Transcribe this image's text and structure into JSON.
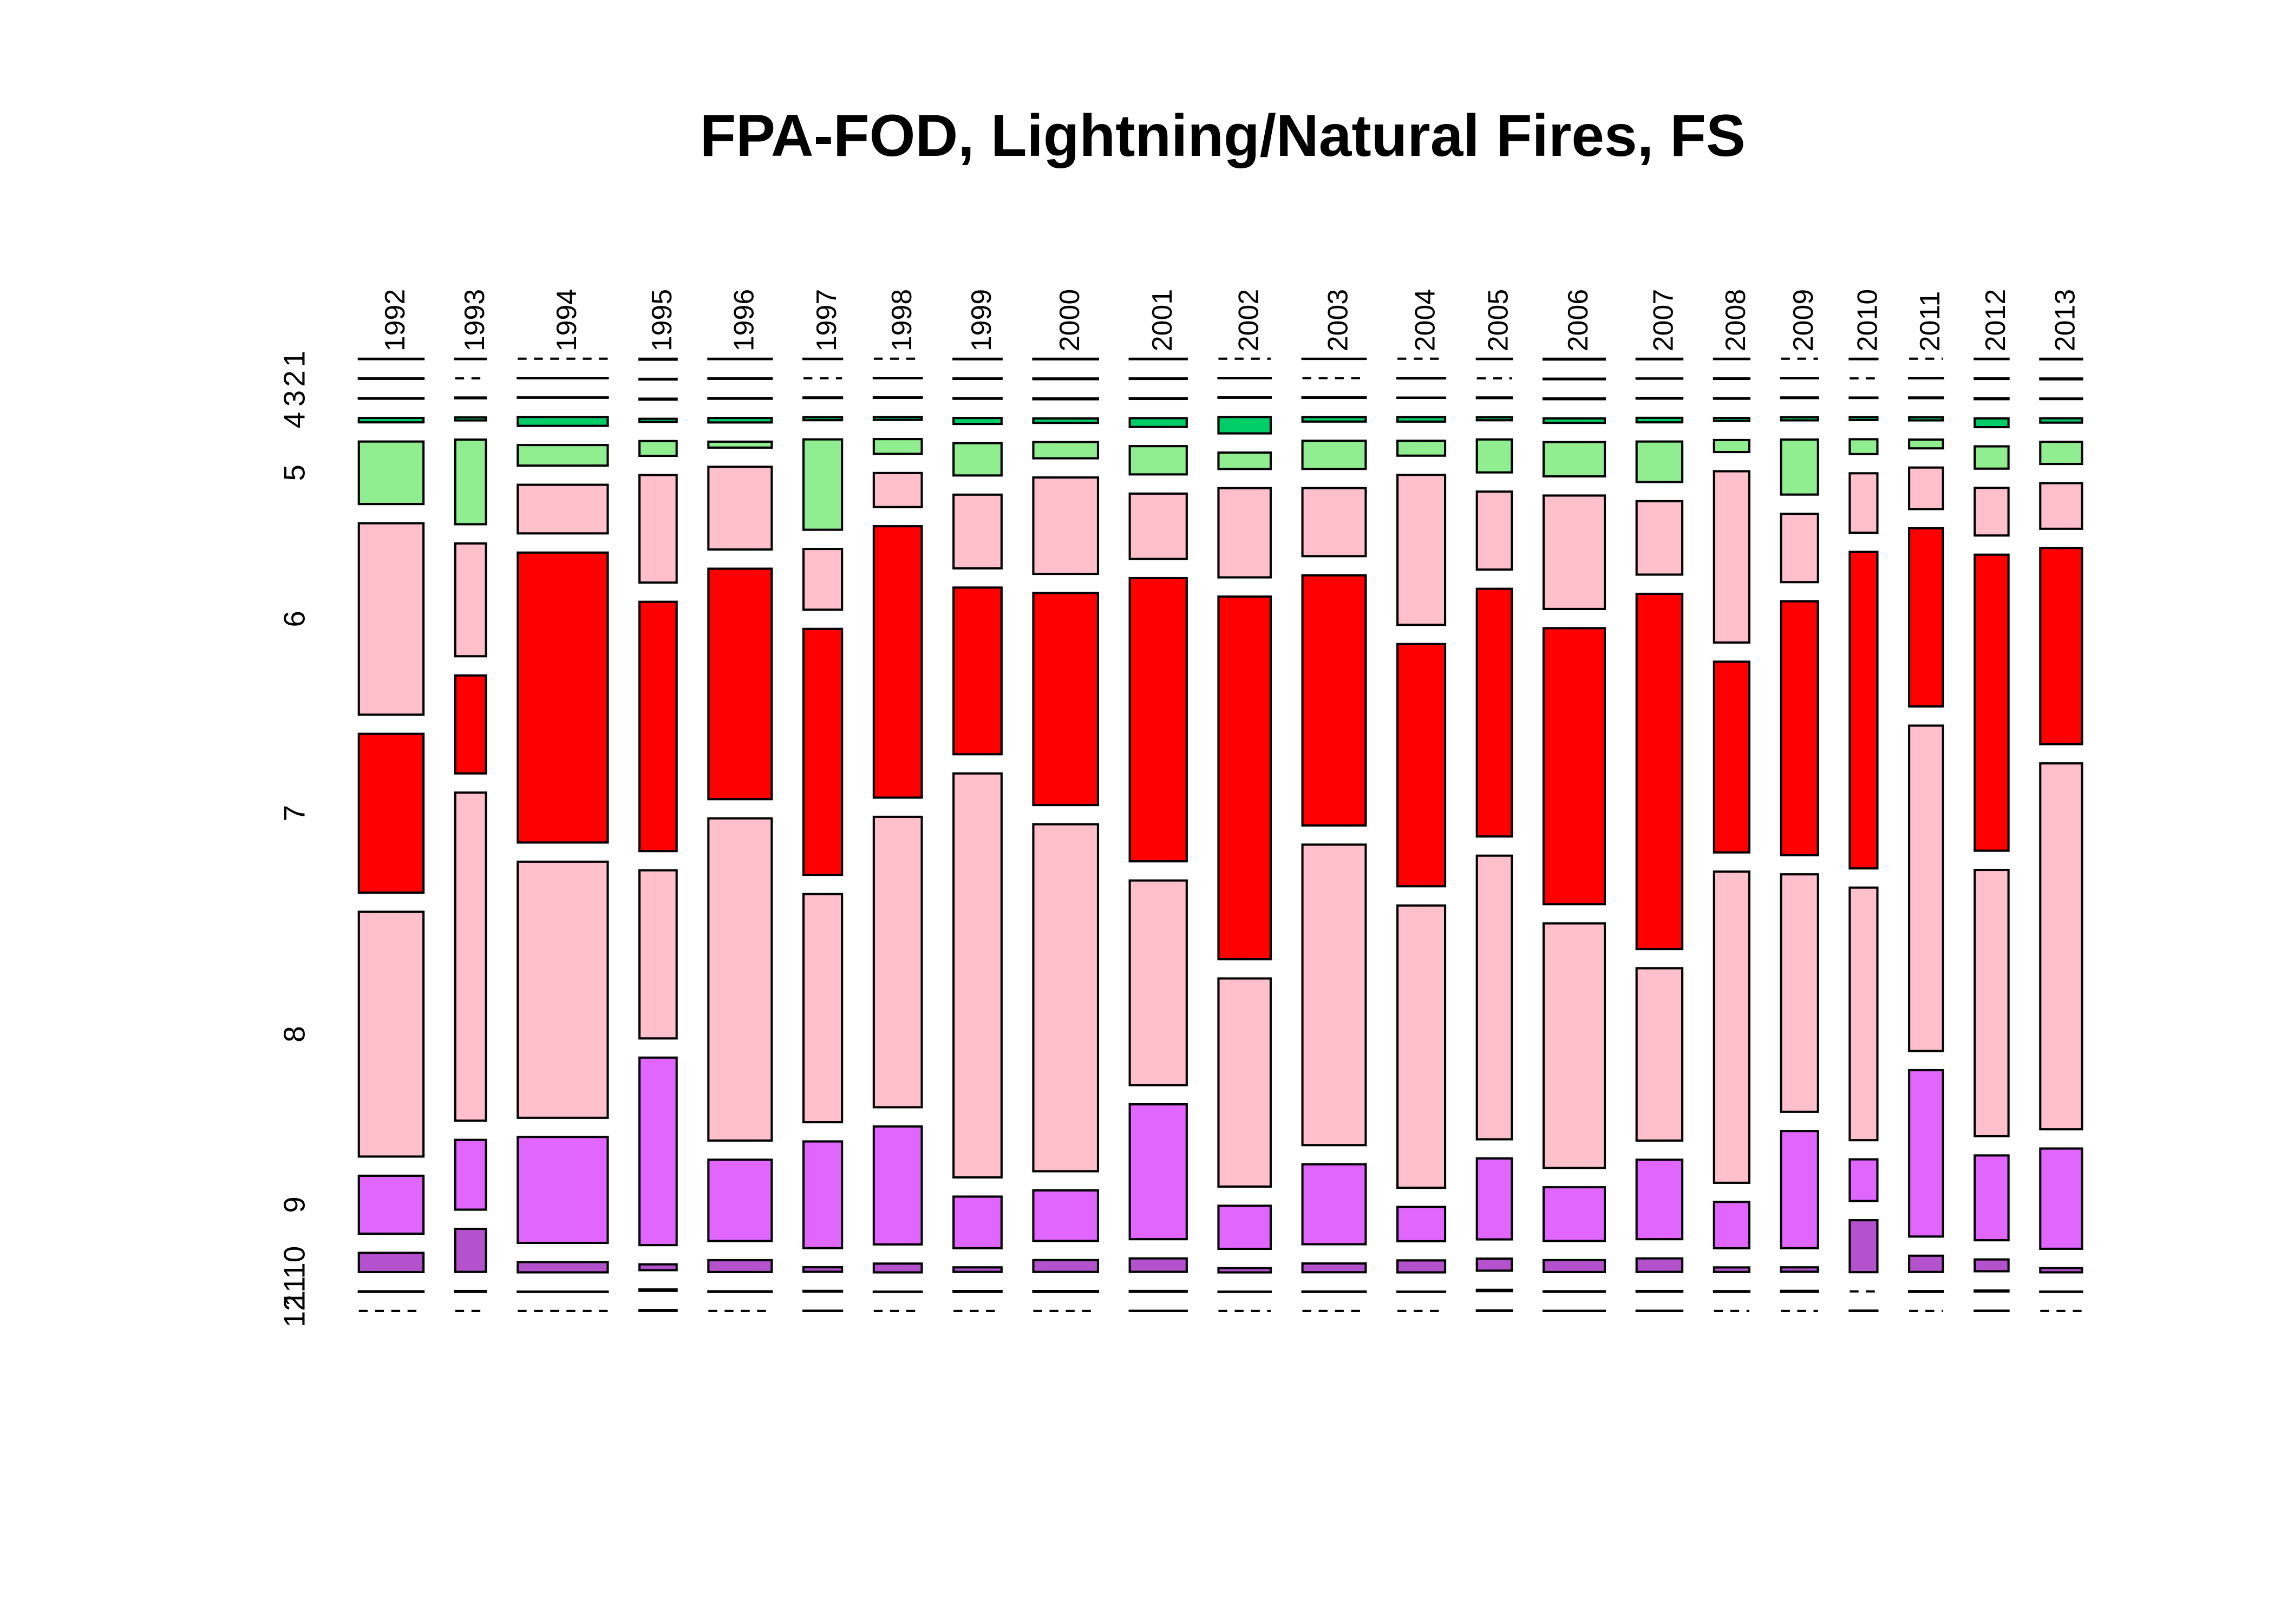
{
  "chart_data": {
    "type": "mosaic",
    "title": "FPA-FOD, Lightning/Natural Fires, FS",
    "categories": [
      "1992",
      "1993",
      "1994",
      "1995",
      "1996",
      "1997",
      "1998",
      "1999",
      "2000",
      "2001",
      "2002",
      "2003",
      "2004",
      "2005",
      "2006",
      "2007",
      "2008",
      "2009",
      "2010",
      "2011",
      "2012",
      "2013"
    ],
    "series": [
      {
        "name": "1",
        "color": "#87cefa",
        "values": [
          2,
          1,
          0,
          3,
          2,
          1,
          0,
          2,
          3,
          2,
          0,
          1,
          0,
          1,
          4,
          2,
          1,
          0,
          1,
          0,
          1,
          2
        ]
      },
      {
        "name": "2",
        "color": "#00bfff",
        "values": [
          3,
          0,
          2,
          2,
          3,
          0,
          1,
          2,
          4,
          3,
          1,
          0,
          2,
          0,
          3,
          1,
          2,
          1,
          0,
          1,
          2,
          3
        ]
      },
      {
        "name": "3",
        "color": "#3cb371",
        "values": [
          4,
          2,
          3,
          3,
          4,
          2,
          2,
          3,
          5,
          4,
          2,
          3,
          1,
          2,
          4,
          3,
          2,
          2,
          1,
          2,
          3,
          2
        ]
      },
      {
        "name": "4",
        "color": "#00cd66",
        "values": [
          25,
          8,
          70,
          10,
          25,
          10,
          12,
          25,
          25,
          44,
          75,
          25,
          19,
          9,
          24,
          18,
          9,
          10,
          7,
          9,
          26,
          16
        ]
      },
      {
        "name": "5",
        "color": "#90ee90",
        "values": [
          354,
          228,
          162,
          48,
          33,
          305,
          62,
          136,
          92,
          141,
          75,
          156,
          62,
          101,
          184,
          162,
          37,
          178,
          36,
          26,
          66,
          81
        ]
      },
      {
        "name": "6",
        "color": "#ffc0cb",
        "values": [
          1084,
          304,
          383,
          350,
          459,
          205,
          143,
          310,
          546,
          326,
          408,
          377,
          626,
          239,
          608,
          294,
          529,
          221,
          144,
          123,
          141,
          167
        ]
      },
      {
        "name": "7",
        "color": "#ff0000",
        "values": [
          899,
          264,
          2285,
          811,
          1279,
          830,
          1141,
          701,
          1201,
          1413,
          1659,
          1386,
          1011,
          759,
          1480,
          1422,
          589,
          821,
          767,
          528,
          876,
          718
        ]
      },
      {
        "name": "8",
        "color": "#ffc0cb",
        "values": [
          1386,
          884,
          2018,
          547,
          1788,
          770,
          1221,
          1699,
          1966,
          1021,
          952,
          1665,
          1178,
          869,
          1312,
          690,
          961,
          768,
          612,
          964,
          788,
          1339
        ]
      },
      {
        "name": "9",
        "color": "#e066ff",
        "values": [
          328,
          188,
          835,
          610,
          451,
          360,
          496,
          217,
          286,
          673,
          197,
          443,
          143,
          248,
          288,
          318,
          143,
          379,
          101,
          493,
          251,
          367
        ]
      },
      {
        "name": "10",
        "color": "#b452cd",
        "values": [
          109,
          116,
          81,
          19,
          66,
          15,
          37,
          19,
          67,
          67,
          20,
          49,
          50,
          37,
          64,
          54,
          14,
          14,
          126,
          48,
          35,
          16
        ]
      },
      {
        "name": "11",
        "color": "#9a32cd",
        "values": [
          3,
          2,
          2,
          5,
          3,
          2,
          1,
          3,
          4,
          3,
          1,
          2,
          1,
          4,
          2,
          2,
          2,
          3,
          0,
          2,
          3,
          1
        ]
      },
      {
        "name": "12",
        "color": "#68228b",
        "values": [
          0,
          0,
          0,
          3,
          0,
          1,
          0,
          0,
          0,
          1,
          0,
          0,
          0,
          2,
          1,
          1,
          0,
          0,
          1,
          0,
          1,
          0
        ]
      }
    ]
  }
}
